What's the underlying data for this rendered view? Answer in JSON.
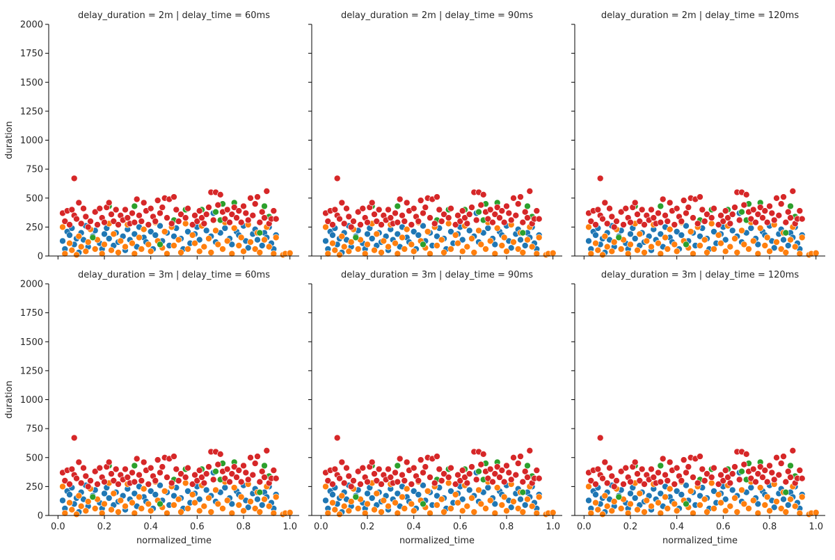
{
  "chart_data": {
    "type": "scatter",
    "facet_rows": {
      "variable": "delay_duration",
      "values": [
        "2m",
        "3m"
      ]
    },
    "facet_cols": {
      "variable": "delay_time",
      "values": [
        "60ms",
        "90ms",
        "120ms"
      ]
    },
    "panel_titles": [
      "delay_duration = 2m | delay_time = 60ms",
      "delay_duration = 2m | delay_time = 90ms",
      "delay_duration = 2m | delay_time = 120ms",
      "delay_duration = 3m | delay_time = 60ms",
      "delay_duration = 3m | delay_time = 90ms",
      "delay_duration = 3m | delay_time = 120ms"
    ],
    "xlabel": "normalized_time",
    "ylabel": "duration",
    "xlim": [
      -0.04,
      1.04
    ],
    "ylim": [
      0,
      2000
    ],
    "xticks": [
      "0.0",
      "0.2",
      "0.4",
      "0.6",
      "0.8",
      "1.0"
    ],
    "yticks": [
      "0",
      "250",
      "500",
      "750",
      "1000",
      "1250",
      "1500",
      "1750",
      "2000"
    ],
    "grid": false,
    "legend": "none",
    "colors": {
      "blue": "#1f77b4",
      "orange": "#ff7f0e",
      "green": "#2ca02c",
      "red": "#d62728"
    },
    "series": [
      {
        "color": "#1f77b4",
        "points": [
          [
            0.02,
            130
          ],
          [
            0.03,
            60
          ],
          [
            0.04,
            210
          ],
          [
            0.05,
            180
          ],
          [
            0.06,
            240
          ],
          [
            0.07,
            100
          ],
          [
            0.08,
            150
          ],
          [
            0.09,
            30
          ],
          [
            0.1,
            200
          ],
          [
            0.11,
            140
          ],
          [
            0.12,
            260
          ],
          [
            0.13,
            80
          ],
          [
            0.15,
            170
          ],
          [
            0.16,
            220
          ],
          [
            0.18,
            110
          ],
          [
            0.19,
            60
          ],
          [
            0.2,
            190
          ],
          [
            0.21,
            240
          ],
          [
            0.22,
            150
          ],
          [
            0.24,
            90
          ],
          [
            0.25,
            200
          ],
          [
            0.26,
            120
          ],
          [
            0.28,
            170
          ],
          [
            0.29,
            50
          ],
          [
            0.3,
            230
          ],
          [
            0.31,
            140
          ],
          [
            0.33,
            190
          ],
          [
            0.34,
            80
          ],
          [
            0.35,
            250
          ],
          [
            0.37,
            160
          ],
          [
            0.38,
            120
          ],
          [
            0.4,
            210
          ],
          [
            0.41,
            60
          ],
          [
            0.42,
            180
          ],
          [
            0.44,
            260
          ],
          [
            0.45,
            130
          ],
          [
            0.47,
            200
          ],
          [
            0.48,
            90
          ],
          [
            0.5,
            170
          ],
          [
            0.51,
            240
          ],
          [
            0.53,
            150
          ],
          [
            0.54,
            60
          ],
          [
            0.56,
            210
          ],
          [
            0.57,
            110
          ],
          [
            0.59,
            190
          ],
          [
            0.6,
            250
          ],
          [
            0.61,
            140
          ],
          [
            0.63,
            80
          ],
          [
            0.64,
            220
          ],
          [
            0.66,
            170
          ],
          [
            0.67,
            370
          ],
          [
            0.68,
            120
          ],
          [
            0.7,
            200
          ],
          [
            0.71,
            60
          ],
          [
            0.72,
            240
          ],
          [
            0.74,
            150
          ],
          [
            0.75,
            100
          ],
          [
            0.77,
            210
          ],
          [
            0.78,
            180
          ],
          [
            0.8,
            260
          ],
          [
            0.81,
            130
          ],
          [
            0.82,
            70
          ],
          [
            0.84,
            190
          ],
          [
            0.85,
            230
          ],
          [
            0.86,
            140
          ],
          [
            0.88,
            90
          ],
          [
            0.89,
            200
          ],
          [
            0.9,
            160
          ],
          [
            0.91,
            250
          ],
          [
            0.92,
            110
          ],
          [
            0.93,
            60
          ],
          [
            0.94,
            180
          ]
        ]
      },
      {
        "color": "#ff7f0e",
        "points": [
          [
            0.02,
            250
          ],
          [
            0.03,
            20
          ],
          [
            0.05,
            110
          ],
          [
            0.06,
            50
          ],
          [
            0.08,
            10
          ],
          [
            0.09,
            170
          ],
          [
            0.1,
            80
          ],
          [
            0.12,
            40
          ],
          [
            0.13,
            120
          ],
          [
            0.14,
            230
          ],
          [
            0.16,
            60
          ],
          [
            0.17,
            140
          ],
          [
            0.19,
            20
          ],
          [
            0.2,
            100
          ],
          [
            0.22,
            280
          ],
          [
            0.23,
            50
          ],
          [
            0.24,
            190
          ],
          [
            0.26,
            30
          ],
          [
            0.27,
            130
          ],
          [
            0.29,
            80
          ],
          [
            0.3,
            270
          ],
          [
            0.32,
            110
          ],
          [
            0.33,
            20
          ],
          [
            0.35,
            160
          ],
          [
            0.36,
            60
          ],
          [
            0.37,
            230
          ],
          [
            0.39,
            100
          ],
          [
            0.4,
            40
          ],
          [
            0.42,
            290
          ],
          [
            0.43,
            130
          ],
          [
            0.45,
            70
          ],
          [
            0.46,
            210
          ],
          [
            0.47,
            20
          ],
          [
            0.49,
            250
          ],
          [
            0.5,
            90
          ],
          [
            0.52,
            140
          ],
          [
            0.53,
            30
          ],
          [
            0.55,
            280
          ],
          [
            0.56,
            60
          ],
          [
            0.58,
            180
          ],
          [
            0.59,
            110
          ],
          [
            0.61,
            40
          ],
          [
            0.62,
            260
          ],
          [
            0.63,
            80
          ],
          [
            0.65,
            150
          ],
          [
            0.66,
            30
          ],
          [
            0.68,
            220
          ],
          [
            0.69,
            100
          ],
          [
            0.71,
            60
          ],
          [
            0.72,
            290
          ],
          [
            0.73,
            130
          ],
          [
            0.75,
            20
          ],
          [
            0.76,
            240
          ],
          [
            0.78,
            90
          ],
          [
            0.79,
            160
          ],
          [
            0.8,
            40
          ],
          [
            0.82,
            270
          ],
          [
            0.83,
            120
          ],
          [
            0.85,
            60
          ],
          [
            0.86,
            200
          ],
          [
            0.87,
            30
          ],
          [
            0.89,
            140
          ],
          [
            0.9,
            250
          ],
          [
            0.91,
            80
          ],
          [
            0.93,
            20
          ],
          [
            0.94,
            160
          ],
          [
            0.97,
            10
          ],
          [
            0.98,
            20
          ],
          [
            1.0,
            25
          ]
        ]
      },
      {
        "color": "#2ca02c",
        "points": [
          [
            0.15,
            160
          ],
          [
            0.22,
            430
          ],
          [
            0.33,
            430
          ],
          [
            0.44,
            100
          ],
          [
            0.5,
            310
          ],
          [
            0.55,
            400
          ],
          [
            0.62,
            400
          ],
          [
            0.68,
            380
          ],
          [
            0.7,
            310
          ],
          [
            0.71,
            450
          ],
          [
            0.76,
            460
          ],
          [
            0.87,
            200
          ],
          [
            0.89,
            430
          ],
          [
            0.91,
            340
          ]
        ]
      },
      {
        "color": "#d62728",
        "points": [
          [
            0.02,
            370
          ],
          [
            0.03,
            300
          ],
          [
            0.04,
            390
          ],
          [
            0.05,
            270
          ],
          [
            0.06,
            400
          ],
          [
            0.07,
            670
          ],
          [
            0.07,
            350
          ],
          [
            0.08,
            320
          ],
          [
            0.09,
            460
          ],
          [
            0.1,
            280
          ],
          [
            0.11,
            410
          ],
          [
            0.12,
            340
          ],
          [
            0.13,
            250
          ],
          [
            0.14,
            300
          ],
          [
            0.16,
            380
          ],
          [
            0.17,
            270
          ],
          [
            0.18,
            410
          ],
          [
            0.19,
            330
          ],
          [
            0.2,
            290
          ],
          [
            0.21,
            420
          ],
          [
            0.22,
            460
          ],
          [
            0.23,
            360
          ],
          [
            0.24,
            300
          ],
          [
            0.25,
            400
          ],
          [
            0.26,
            270
          ],
          [
            0.27,
            350
          ],
          [
            0.28,
            310
          ],
          [
            0.29,
            400
          ],
          [
            0.3,
            330
          ],
          [
            0.31,
            280
          ],
          [
            0.32,
            370
          ],
          [
            0.33,
            290
          ],
          [
            0.34,
            490
          ],
          [
            0.35,
            350
          ],
          [
            0.36,
            300
          ],
          [
            0.37,
            460
          ],
          [
            0.38,
            390
          ],
          [
            0.39,
            270
          ],
          [
            0.4,
            410
          ],
          [
            0.41,
            340
          ],
          [
            0.42,
            300
          ],
          [
            0.43,
            480
          ],
          [
            0.44,
            370
          ],
          [
            0.45,
            420
          ],
          [
            0.46,
            500
          ],
          [
            0.47,
            330
          ],
          [
            0.48,
            490
          ],
          [
            0.49,
            280
          ],
          [
            0.5,
            510
          ],
          [
            0.51,
            400
          ],
          [
            0.52,
            300
          ],
          [
            0.53,
            360
          ],
          [
            0.55,
            330
          ],
          [
            0.56,
            410
          ],
          [
            0.58,
            270
          ],
          [
            0.59,
            350
          ],
          [
            0.6,
            300
          ],
          [
            0.61,
            390
          ],
          [
            0.62,
            330
          ],
          [
            0.63,
            280
          ],
          [
            0.64,
            360
          ],
          [
            0.65,
            420
          ],
          [
            0.66,
            550
          ],
          [
            0.67,
            310
          ],
          [
            0.68,
            550
          ],
          [
            0.69,
            440
          ],
          [
            0.7,
            530
          ],
          [
            0.71,
            380
          ],
          [
            0.72,
            320
          ],
          [
            0.73,
            400
          ],
          [
            0.74,
            290
          ],
          [
            0.75,
            360
          ],
          [
            0.76,
            420
          ],
          [
            0.77,
            330
          ],
          [
            0.78,
            390
          ],
          [
            0.79,
            290
          ],
          [
            0.8,
            430
          ],
          [
            0.81,
            370
          ],
          [
            0.82,
            310
          ],
          [
            0.83,
            500
          ],
          [
            0.84,
            350
          ],
          [
            0.85,
            450
          ],
          [
            0.86,
            510
          ],
          [
            0.87,
            290
          ],
          [
            0.88,
            380
          ],
          [
            0.89,
            330
          ],
          [
            0.9,
            560
          ],
          [
            0.91,
            280
          ],
          [
            0.92,
            320
          ],
          [
            0.93,
            390
          ],
          [
            0.94,
            320
          ]
        ]
      }
    ]
  }
}
